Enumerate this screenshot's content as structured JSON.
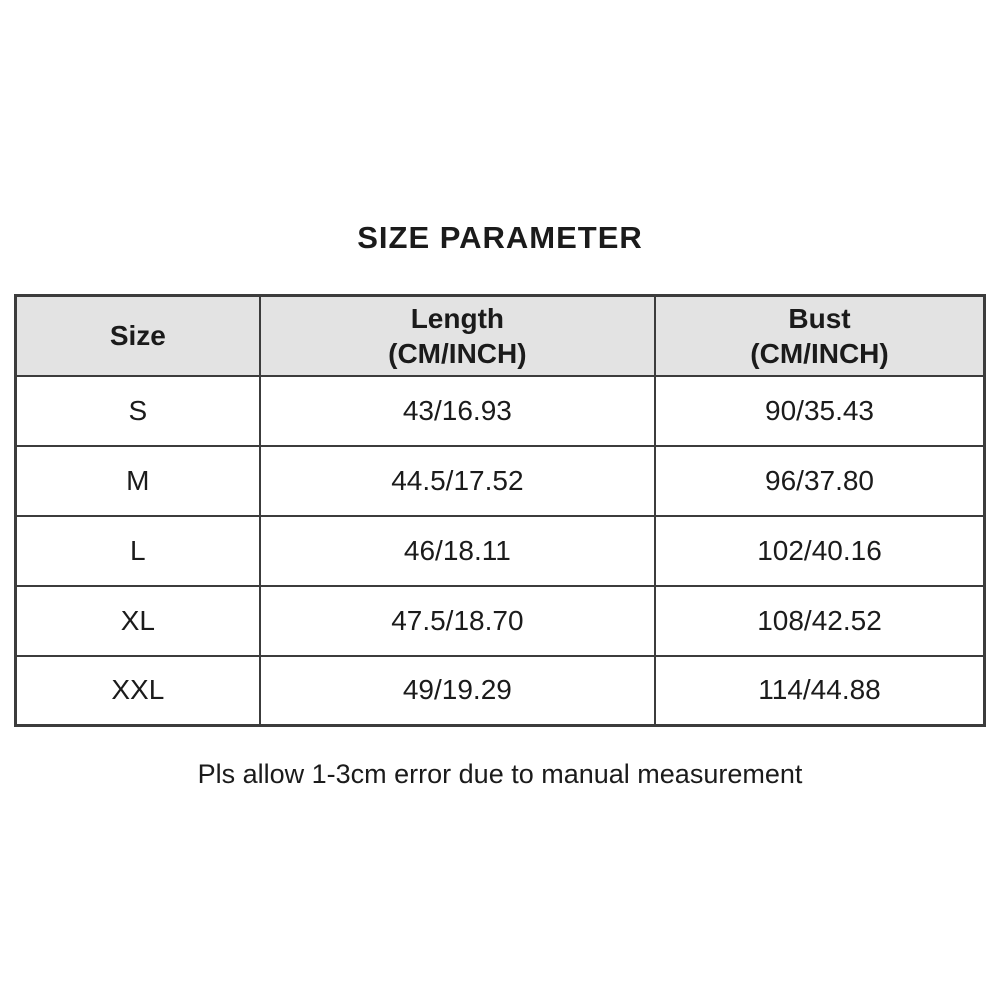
{
  "page": {
    "title": "SIZE PARAMETER",
    "footnote": "Pls allow 1-3cm error due to manual measurement"
  },
  "table": {
    "columns": [
      {
        "label": "Size",
        "sub": ""
      },
      {
        "label": "Length",
        "sub": "(CM/INCH)"
      },
      {
        "label": "Bust",
        "sub": "(CM/INCH)"
      }
    ],
    "rows": [
      {
        "size": "S",
        "length": "43/16.93",
        "bust": "90/35.43"
      },
      {
        "size": "M",
        "length": "44.5/17.52",
        "bust": "96/37.80"
      },
      {
        "size": "L",
        "length": "46/18.11",
        "bust": "102/40.16"
      },
      {
        "size": "XL",
        "length": "47.5/18.70",
        "bust": "108/42.52"
      },
      {
        "size": "XXL",
        "length": "49/19.29",
        "bust": "114/44.88"
      }
    ]
  },
  "colors": {
    "background": "#ffffff",
    "header_bg": "#e3e3e3",
    "border": "#3c3c3c",
    "text": "#1b1b1b"
  },
  "chart_data": {
    "type": "table",
    "title": "SIZE PARAMETER",
    "columns": [
      "Size",
      "Length (CM/INCH)",
      "Bust (CM/INCH)"
    ],
    "rows": [
      [
        "S",
        "43/16.93",
        "90/35.43"
      ],
      [
        "M",
        "44.5/17.52",
        "96/37.80"
      ],
      [
        "L",
        "46/18.11",
        "102/40.16"
      ],
      [
        "XL",
        "47.5/18.70",
        "108/42.52"
      ],
      [
        "XXL",
        "49/19.29",
        "114/44.88"
      ]
    ],
    "length_cm": [
      43,
      44.5,
      46,
      47.5,
      49
    ],
    "length_inch": [
      16.93,
      17.52,
      18.11,
      18.7,
      19.29
    ],
    "bust_cm": [
      90,
      96,
      102,
      108,
      114
    ],
    "bust_inch": [
      35.43,
      37.8,
      40.16,
      42.52,
      44.88
    ],
    "note": "Pls allow 1-3cm error due to manual measurement"
  }
}
